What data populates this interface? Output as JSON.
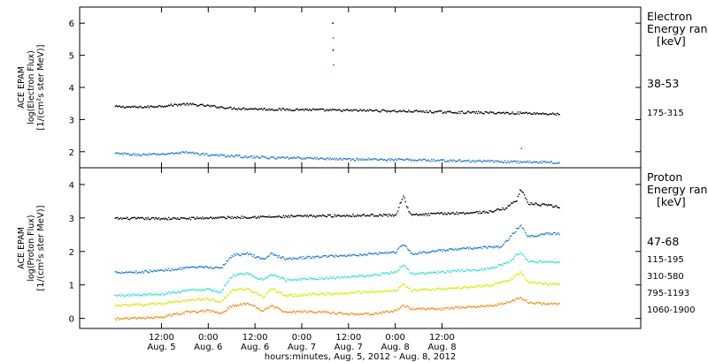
{
  "chart_data": [
    {
      "type": "scatter",
      "title": "",
      "ylabel_lines": [
        "ACE EPAM",
        "log(Electron Flux)",
        "[1/(cm²s ster MeV)]"
      ],
      "ylim": [
        1.5,
        6.5
      ],
      "yticks": [
        2,
        3,
        4,
        5,
        6
      ],
      "grid": false,
      "legend": {
        "placement": "right",
        "title_lines": [
          "Electron",
          "Energy ranges",
          "[keV]"
        ],
        "entries": [
          "38-53",
          "175-315"
        ]
      },
      "series": [
        {
          "name": "38-53",
          "color": "#000000",
          "points": [
            [
              0,
              3.42
            ],
            [
              6,
              3.4
            ],
            [
              12,
              3.44
            ],
            [
              18,
              3.5
            ],
            [
              24,
              3.44
            ],
            [
              30,
              3.37
            ],
            [
              36,
              3.35
            ],
            [
              42,
              3.33
            ],
            [
              48,
              3.33
            ],
            [
              54,
              3.31
            ],
            [
              60,
              3.3
            ],
            [
              66,
              3.3
            ],
            [
              72,
              3.28
            ],
            [
              78,
              3.27
            ],
            [
              84,
              3.25
            ],
            [
              90,
              3.24
            ],
            [
              96,
              3.23
            ],
            [
              102,
              3.22
            ],
            [
              106,
              3.22
            ],
            [
              110,
              3.2
            ],
            [
              114,
              3.18
            ]
          ],
          "spikes": [
            [
              55.8,
              6.02
            ],
            [
              55.9,
              5.18
            ]
          ]
        },
        {
          "name": "175-315",
          "color": "#1a78d8",
          "points": [
            [
              0,
              1.96
            ],
            [
              6,
              1.92
            ],
            [
              12,
              1.94
            ],
            [
              18,
              2.0
            ],
            [
              24,
              1.92
            ],
            [
              30,
              1.88
            ],
            [
              36,
              1.85
            ],
            [
              42,
              1.82
            ],
            [
              48,
              1.82
            ],
            [
              54,
              1.8
            ],
            [
              60,
              1.78
            ],
            [
              66,
              1.78
            ],
            [
              72,
              1.77
            ],
            [
              78,
              1.76
            ],
            [
              84,
              1.74
            ],
            [
              90,
              1.73
            ],
            [
              96,
              1.72
            ],
            [
              102,
              1.7
            ],
            [
              106,
              1.7
            ],
            [
              110,
              1.69
            ],
            [
              114,
              1.68
            ]
          ],
          "spikes": [
            [
              55.9,
              5.56
            ],
            [
              56.0,
              4.72
            ],
            [
              104.2,
              2.12
            ]
          ]
        }
      ]
    },
    {
      "type": "scatter",
      "title": "",
      "ylabel_lines": [
        "ACE EPAM",
        "log(Proton Flux)",
        "[1/(cm²s ster MeV)]"
      ],
      "ylim": [
        -0.3,
        4.5
      ],
      "yticks": [
        0,
        1,
        2,
        3,
        4
      ],
      "grid": false,
      "legend": {
        "placement": "right",
        "title_lines": [
          "Proton",
          "Energy ranges",
          "[keV]"
        ],
        "entries": [
          "47-68",
          "115-195",
          "310-580",
          "795-1193",
          "1060-1900"
        ]
      },
      "series": [
        {
          "name": "47-68",
          "color": "#000000",
          "points": [
            [
              0,
              3.0
            ],
            [
              6,
              3.0
            ],
            [
              12,
              3.0
            ],
            [
              18,
              3.0
            ],
            [
              24,
              3.02
            ],
            [
              30,
              3.03
            ],
            [
              36,
              3.05
            ],
            [
              42,
              3.05
            ],
            [
              48,
              3.07
            ],
            [
              54,
              3.08
            ],
            [
              60,
              3.09
            ],
            [
              66,
              3.1
            ],
            [
              72,
              3.1
            ],
            [
              74,
              3.7
            ],
            [
              75,
              3.3
            ],
            [
              76,
              3.1
            ],
            [
              84,
              3.15
            ],
            [
              90,
              3.17
            ],
            [
              96,
              3.2
            ],
            [
              100,
              3.3
            ],
            [
              103,
              3.55
            ],
            [
              104,
              3.9
            ],
            [
              106,
              3.45
            ],
            [
              110,
              3.4
            ],
            [
              114,
              3.35
            ]
          ]
        },
        {
          "name": "115-195",
          "color": "#1a78d8",
          "points": [
            [
              0,
              1.4
            ],
            [
              6,
              1.4
            ],
            [
              12,
              1.45
            ],
            [
              18,
              1.52
            ],
            [
              24,
              1.55
            ],
            [
              27,
              1.5
            ],
            [
              30,
              1.9
            ],
            [
              34,
              1.95
            ],
            [
              38,
              1.78
            ],
            [
              40,
              1.95
            ],
            [
              44,
              1.78
            ],
            [
              48,
              1.83
            ],
            [
              54,
              1.87
            ],
            [
              60,
              1.9
            ],
            [
              66,
              1.95
            ],
            [
              72,
              2.0
            ],
            [
              74,
              2.25
            ],
            [
              76,
              1.95
            ],
            [
              84,
              2.05
            ],
            [
              90,
              2.1
            ],
            [
              96,
              2.15
            ],
            [
              99,
              2.15
            ],
            [
              101,
              2.4
            ],
            [
              104,
              2.8
            ],
            [
              106,
              2.45
            ],
            [
              110,
              2.55
            ],
            [
              114,
              2.55
            ]
          ]
        },
        {
          "name": "310-580",
          "color": "#33e0d0",
          "points": [
            [
              0,
              0.7
            ],
            [
              6,
              0.72
            ],
            [
              12,
              0.75
            ],
            [
              18,
              0.85
            ],
            [
              24,
              0.9
            ],
            [
              27,
              0.8
            ],
            [
              30,
              1.3
            ],
            [
              34,
              1.35
            ],
            [
              38,
              1.15
            ],
            [
              40,
              1.35
            ],
            [
              44,
              1.15
            ],
            [
              48,
              1.2
            ],
            [
              54,
              1.22
            ],
            [
              60,
              1.25
            ],
            [
              66,
              1.3
            ],
            [
              72,
              1.4
            ],
            [
              74,
              1.6
            ],
            [
              76,
              1.35
            ],
            [
              84,
              1.4
            ],
            [
              90,
              1.45
            ],
            [
              96,
              1.5
            ],
            [
              101,
              1.7
            ],
            [
              104,
              2.0
            ],
            [
              106,
              1.7
            ],
            [
              110,
              1.7
            ],
            [
              114,
              1.7
            ]
          ]
        },
        {
          "name": "795-1193",
          "color": "#d8e800",
          "points": [
            [
              0,
              0.4
            ],
            [
              6,
              0.42
            ],
            [
              12,
              0.45
            ],
            [
              18,
              0.55
            ],
            [
              24,
              0.6
            ],
            [
              27,
              0.5
            ],
            [
              30,
              0.85
            ],
            [
              34,
              0.9
            ],
            [
              38,
              0.65
            ],
            [
              40,
              0.9
            ],
            [
              44,
              0.7
            ],
            [
              48,
              0.72
            ],
            [
              54,
              0.75
            ],
            [
              60,
              0.78
            ],
            [
              66,
              0.82
            ],
            [
              72,
              0.85
            ],
            [
              74,
              1.05
            ],
            [
              76,
              0.85
            ],
            [
              84,
              0.9
            ],
            [
              90,
              0.95
            ],
            [
              96,
              1.0
            ],
            [
              101,
              1.15
            ],
            [
              104,
              1.4
            ],
            [
              106,
              1.1
            ],
            [
              110,
              1.05
            ],
            [
              114,
              1.05
            ]
          ]
        },
        {
          "name": "1060-1900",
          "color": "#f08a10",
          "points": [
            [
              0,
              0.0
            ],
            [
              6,
              0.02
            ],
            [
              12,
              0.05
            ],
            [
              18,
              0.2
            ],
            [
              24,
              0.25
            ],
            [
              27,
              0.15
            ],
            [
              30,
              0.4
            ],
            [
              34,
              0.45
            ],
            [
              38,
              0.25
            ],
            [
              40,
              0.4
            ],
            [
              44,
              0.2
            ],
            [
              48,
              0.22
            ],
            [
              54,
              0.2
            ],
            [
              60,
              0.15
            ],
            [
              66,
              0.15
            ],
            [
              72,
              0.25
            ],
            [
              74,
              0.4
            ],
            [
              76,
              0.3
            ],
            [
              84,
              0.3
            ],
            [
              90,
              0.35
            ],
            [
              96,
              0.4
            ],
            [
              101,
              0.5
            ],
            [
              104,
              0.65
            ],
            [
              106,
              0.5
            ],
            [
              110,
              0.45
            ],
            [
              114,
              0.45
            ]
          ]
        }
      ]
    }
  ],
  "x_axis": {
    "unit": "hours from 00:00 Aug. 5, 2012",
    "xlim": [
      -9,
      135
    ],
    "ticks": [
      {
        "x": 12,
        "time": "12:00",
        "date": "Aug. 5"
      },
      {
        "x": 24,
        "time": "0:00",
        "date": "Aug. 6"
      },
      {
        "x": 36,
        "time": "12:00",
        "date": "Aug. 6"
      },
      {
        "x": 48,
        "time": "0:00",
        "date": "Aug. 7"
      },
      {
        "x": 60,
        "time": "12:00",
        "date": "Aug. 7"
      },
      {
        "x": 72,
        "time": "0:00",
        "date": "Aug. 8"
      },
      {
        "x": 84,
        "time": "12:00",
        "date": "Aug. 8"
      }
    ],
    "label": "hours:minutes, Aug. 5, 2012 - Aug. 8, 2012"
  }
}
